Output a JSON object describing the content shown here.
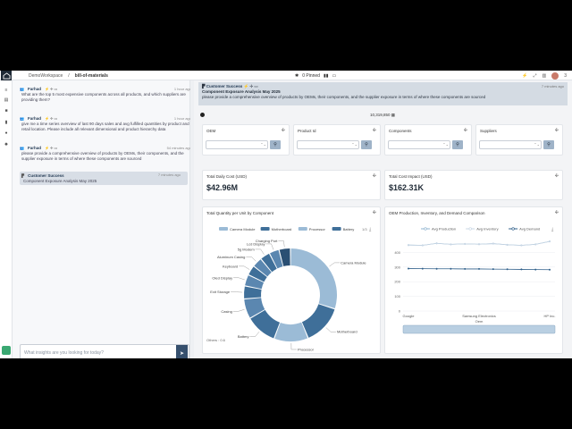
{
  "topbar": {
    "workspace": "DemoWorkspace",
    "page": "bill-of-materials",
    "pinned_label": "0 Pinned",
    "right_count": "3"
  },
  "chat": {
    "messages": [
      {
        "author": "Farhad",
        "time": "1 hour ago",
        "text": "What are the top 5 most expensive components across all products, and which suppliers are providing them?"
      },
      {
        "author": "Farhad",
        "time": "1 hour ago",
        "text": "give me a time series overview of last 90 days sales and avg fulfilled quantities by product and retail location. Please include all relevant dimensional and product hierarchy data"
      },
      {
        "author": "Farhad",
        "time": "54 minutes ago",
        "text": "please provide a comprehensive overview of products by OEMs, their components, and the supplier exposure in terms of where these components are sourced"
      },
      {
        "author": "Customer Success",
        "time": "7 minutes ago",
        "text": "Component Exposure Analysis May 2025"
      }
    ],
    "input_placeholder": "What insights are you looking for today?"
  },
  "banner": {
    "author": "Customer Success",
    "time": "7 minutes ago",
    "title": "Component Exposure Analysis May 2025",
    "text": "please provide a comprehensive overview of products by OEMs, their components, and the supplier exposure in terms of where these components are sourced"
  },
  "toolbar": {
    "count": "10,319,850"
  },
  "filters": [
    {
      "label": "OEM"
    },
    {
      "label": "Product Id"
    },
    {
      "label": "Components"
    },
    {
      "label": "Suppliers"
    }
  ],
  "kpis": [
    {
      "label": "Total Daily Cost (USD)",
      "value": "$42.96M"
    },
    {
      "label": "Total Cost Impact (USD)",
      "value": "$162.31K"
    }
  ],
  "colors": {
    "dark": "#2f5f8a",
    "mid": "#5b87b0",
    "light": "#9bbbd6"
  },
  "donut_chart": {
    "type": "pie",
    "title": "Total Quantity per Unit by Component",
    "legend": [
      "Camera Module",
      "Motherboard",
      "Processor",
      "Battery"
    ],
    "legend_more": "1/3",
    "slices": [
      {
        "label": "Camera Module",
        "value": 30,
        "color": "#9bbbd6"
      },
      {
        "label": "Motherboard",
        "value": 14,
        "color": "#3f6f99"
      },
      {
        "label": "Processor",
        "value": 12,
        "color": "#9bbbd6"
      },
      {
        "label": "Battery",
        "value": 11,
        "color": "#3f6f99"
      },
      {
        "label": "Casing",
        "value": 7,
        "color": "#5b87b0"
      },
      {
        "label": "Exit Storage",
        "value": 4.5,
        "color": "#3f6f99"
      },
      {
        "label": "Oled Display",
        "value": 4,
        "color": "#5b87b0"
      },
      {
        "label": "Keyboard",
        "value": 3.5,
        "color": "#3f6f99"
      },
      {
        "label": "Aluminum Casing",
        "value": 3.5,
        "color": "#5b87b0"
      },
      {
        "label": "5g Modem",
        "value": 3.5,
        "color": "#3f6f99"
      },
      {
        "label": "Lcd Display",
        "value": 3.5,
        "color": "#5b87b0"
      },
      {
        "label": "Charging Port",
        "value": 4,
        "color": "#2a4f73"
      }
    ],
    "others_label": "Others : 0.6"
  },
  "chart_data": {
    "type": "line",
    "title": "OEM Production, Inventory, and Demand Comparison",
    "xlabel": "Oem",
    "categories": [
      "Google",
      "Samsung Electronics",
      "HP Inc."
    ],
    "x": [
      0,
      1,
      2,
      3,
      4,
      5,
      6,
      7,
      8,
      9,
      10
    ],
    "ylim": [
      0,
      500
    ],
    "yticks": [
      0,
      100,
      200,
      300,
      400
    ],
    "series": [
      {
        "name": "Avg Production",
        "values": [
          450,
          448,
          462,
          455,
          458,
          456,
          460,
          452,
          448,
          455,
          475
        ],
        "color": "#8fb3cf"
      },
      {
        "name": "Avg Inventory",
        "values": [
          450,
          448,
          462,
          455,
          458,
          456,
          460,
          452,
          448,
          455,
          475
        ],
        "color": "#c9d7e5"
      },
      {
        "name": "Avg Demand",
        "values": [
          290,
          289,
          288,
          288,
          287,
          287,
          286,
          285,
          284,
          283,
          282
        ],
        "color": "#2f5f8a"
      }
    ]
  }
}
